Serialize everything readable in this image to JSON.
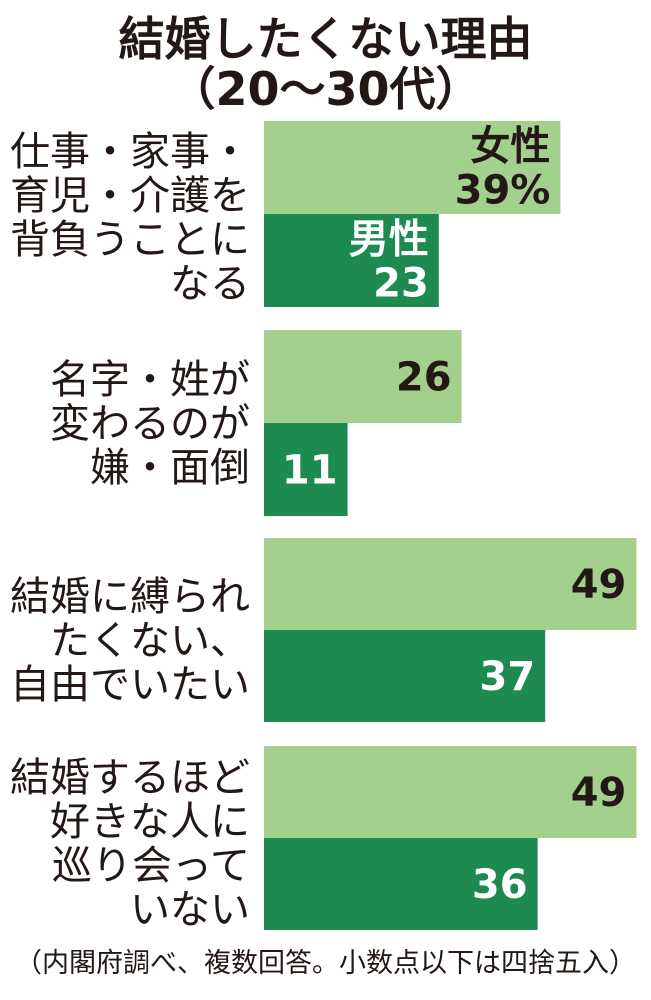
{
  "title": {
    "line1": "結婚したくない理由",
    "line2": "（20〜30代）"
  },
  "footnote": "（内閣府調べ、複数回答。小数点以下は四捨五入）",
  "colors": {
    "female": "#a3d08c",
    "male": "#1d8a4f",
    "text": "#231815"
  },
  "chart_data": {
    "type": "bar",
    "orientation": "horizontal",
    "unit": "%",
    "categories": [
      [
        "仕事・家事・",
        "育児・介護を",
        "背負うことに",
        "なる"
      ],
      [
        "名字・姓が",
        "変わるのが",
        "嫌・面倒"
      ],
      [
        "結婚に縛られ",
        "たくない、",
        "自由でいたい"
      ],
      [
        "結婚するほど",
        "好きな人に",
        "巡り会って",
        "いない"
      ]
    ],
    "series": [
      {
        "name": "女性",
        "values": [
          39,
          26,
          49,
          49
        ]
      },
      {
        "name": "男性",
        "values": [
          23,
          11,
          37,
          36
        ]
      }
    ],
    "value_labels": [
      [
        "女性",
        "39%"
      ],
      [
        "男性",
        "23"
      ],
      [
        "26"
      ],
      [
        "11"
      ],
      [
        "49"
      ],
      [
        "37"
      ],
      [
        "49"
      ],
      [
        "36"
      ]
    ]
  }
}
